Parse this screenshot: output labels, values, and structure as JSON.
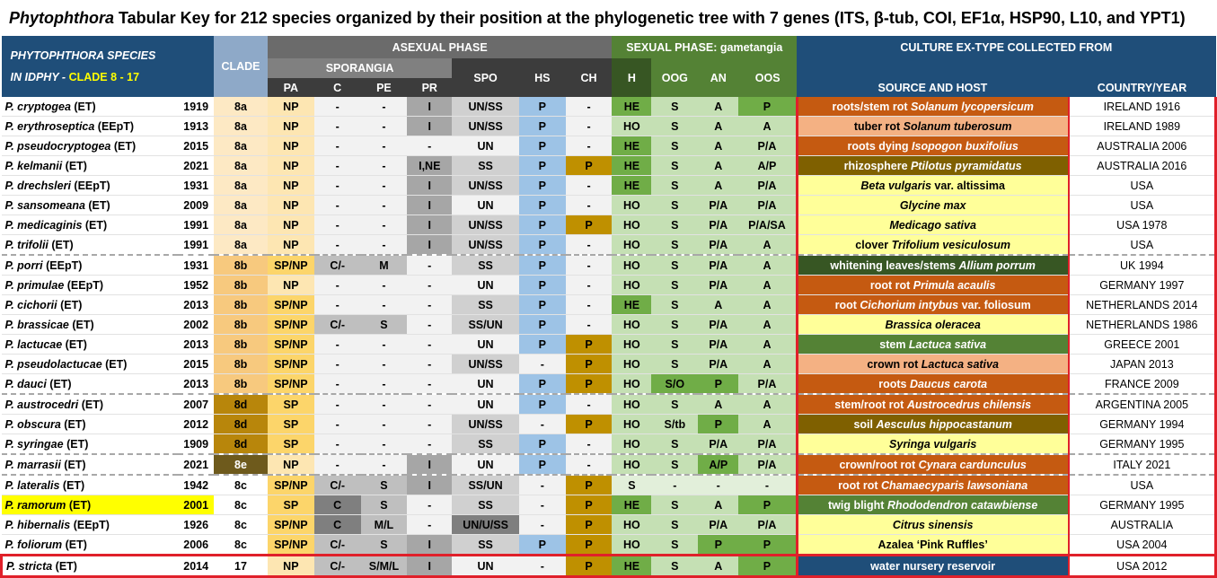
{
  "title": {
    "genus": "Phytophthora",
    "rest": " Tabular Key for 212 species organized by their position at the phylogenetic tree with 7 genes (ITS, β-tub, COI, EF1α, HSP90, L10, and YPT1)"
  },
  "header": {
    "species_title": "PHYTOPHTHORA SPECIES",
    "species_sub_prefix": "IN IDPHY - ",
    "species_sub_clade": "CLADE 8 - 17",
    "clade": "CLADE",
    "asexual_phase": "ASEXUAL PHASE",
    "sporangia": "SPORANGIA",
    "sexual_phase": "SEXUAL PHASE: gametangia",
    "culture": "CULTURE EX-TYPE COLLECTED FROM",
    "pa": "PA",
    "c": "C",
    "pe": "PE",
    "pr": "PR",
    "spo": "SPO",
    "hs": "HS",
    "ch": "CH",
    "h": "H",
    "oog": "OOG",
    "an": "AN",
    "oos": "OOS",
    "source": "SOURCE AND HOST",
    "country": "COUNTRY/YEAR"
  },
  "colors": {
    "clade_8a": "#fde9c4",
    "clade_8b": "#f7c97e",
    "clade_8d": "#b8860b",
    "clade_8e": "#6e5a1c",
    "pa_np": "#fde6b2",
    "pa_sp": "#fcd56a",
    "hs_p": "#9dc3e6",
    "ch_p": "#bf9000",
    "h_he": "#70ad47",
    "h_ho": "#c5e0b4",
    "src_orange": "#c55a11",
    "src_peach": "#f4b183",
    "src_olive": "#7f6000",
    "src_yellow": "#ffff99",
    "src_dkgreen": "#375623",
    "src_green": "#548235",
    "src_navy": "#1f4e79",
    "highlight": "#ffff00"
  },
  "rows": [
    {
      "species": "P. cryptogea",
      "tag": " (ET)",
      "year": "1919",
      "clade": "8a",
      "pa": "NP",
      "c": "-",
      "pe": "-",
      "pr": "I",
      "spo": "UN/SS",
      "hs": "P",
      "ch": "-",
      "h": "HE",
      "oog": "S",
      "an": "A",
      "oos": "P",
      "src_pre": "roots/stem rot ",
      "src_host": "Solanum lycopersicum",
      "src_post": "",
      "src_style": "orange",
      "country": "IRELAND 1916"
    },
    {
      "species": "P. erythroseptica",
      "tag": " (EEpT)",
      "year": "1913",
      "clade": "8a",
      "pa": "NP",
      "c": "-",
      "pe": "-",
      "pr": "I",
      "spo": "UN/SS",
      "hs": "P",
      "ch": "-",
      "h": "HO",
      "oog": "S",
      "an": "A",
      "oos": "A",
      "src_pre": "tuber rot ",
      "src_host": "Solanum tuberosum",
      "src_post": "",
      "src_style": "peach",
      "country": "IRELAND 1989"
    },
    {
      "species": "P. pseudocryptogea",
      "tag": " (ET)",
      "year": "2015",
      "clade": "8a",
      "pa": "NP",
      "c": "-",
      "pe": "-",
      "pr": "-",
      "spo": "UN",
      "hs": "P",
      "ch": "-",
      "h": "HE",
      "oog": "S",
      "an": "A",
      "oos": "P/A",
      "src_pre": "roots dying ",
      "src_host": "Isopogon buxifolius",
      "src_post": "",
      "src_style": "orange",
      "country": "AUSTRALIA 2006"
    },
    {
      "species": "P. kelmanii",
      "tag": " (ET)",
      "year": "2021",
      "clade": "8a",
      "pa": "NP",
      "c": "-",
      "pe": "-",
      "pr": "I,NE",
      "spo": "SS",
      "hs": "P",
      "ch": "P",
      "h": "HE",
      "oog": "S",
      "an": "A",
      "oos": "A/P",
      "src_pre": "rhizosphere ",
      "src_host": "Ptilotus pyramidatus",
      "src_post": "",
      "src_style": "olive",
      "country": "AUSTRALIA 2016"
    },
    {
      "species": "P. drechsleri",
      "tag": " (EEpT)",
      "year": "1931",
      "clade": "8a",
      "pa": "NP",
      "c": "-",
      "pe": "-",
      "pr": "I",
      "spo": "UN/SS",
      "hs": "P",
      "ch": "-",
      "h": "HE",
      "oog": "S",
      "an": "A",
      "oos": "P/A",
      "src_pre": "",
      "src_host": "Beta vulgaris",
      "src_post": " var. altissima",
      "src_style": "yellow",
      "country": "USA"
    },
    {
      "species": "P. sansomeana",
      "tag": " (ET)",
      "year": "2009",
      "clade": "8a",
      "pa": "NP",
      "c": "-",
      "pe": "-",
      "pr": "I",
      "spo": "UN",
      "hs": "P",
      "ch": "-",
      "h": "HO",
      "oog": "S",
      "an": "P/A",
      "oos": "P/A",
      "src_pre": "",
      "src_host": "Glycine max",
      "src_post": "",
      "src_style": "yellow",
      "country": "USA"
    },
    {
      "species": "P. medicaginis",
      "tag": " (ET)",
      "year": "1991",
      "clade": "8a",
      "pa": "NP",
      "c": "-",
      "pe": "-",
      "pr": "I",
      "spo": "UN/SS",
      "hs": "P",
      "ch": "P",
      "h": "HO",
      "oog": "S",
      "an": "P/A",
      "oos": "P/A/SA",
      "src_pre": "",
      "src_host": "Medicago sativa",
      "src_post": "",
      "src_style": "yellow",
      "country": "USA 1978"
    },
    {
      "species": "P. trifolii",
      "tag": " (ET)",
      "year": "1991",
      "clade": "8a",
      "pa": "NP",
      "c": "-",
      "pe": "-",
      "pr": "I",
      "spo": "UN/SS",
      "hs": "P",
      "ch": "-",
      "h": "HO",
      "oog": "S",
      "an": "P/A",
      "oos": "A",
      "src_pre": "clover ",
      "src_host": "Trifolium vesiculosum",
      "src_post": "",
      "src_style": "yellow",
      "country": "USA",
      "sep": true
    },
    {
      "species": "P. porri",
      "tag": " (EEpT)",
      "year": "1931",
      "clade": "8b",
      "pa": "SP/NP",
      "c": "C/-",
      "pe": "M",
      "pr": "-",
      "spo": "SS",
      "hs": "P",
      "ch": "-",
      "h": "HO",
      "oog": "S",
      "an": "P/A",
      "oos": "A",
      "src_pre": "whitening leaves/stems ",
      "src_host": "Allium porrum",
      "src_post": "",
      "src_style": "dkgreen",
      "country": "UK 1994"
    },
    {
      "species": "P. primulae",
      "tag": " (EEpT)",
      "year": "1952",
      "clade": "8b",
      "pa": "NP",
      "c": "-",
      "pe": "-",
      "pr": "-",
      "spo": "UN",
      "hs": "P",
      "ch": "-",
      "h": "HO",
      "oog": "S",
      "an": "P/A",
      "oos": "A",
      "src_pre": "root rot ",
      "src_host": "Primula acaulis",
      "src_post": "",
      "src_style": "orange",
      "country": "GERMANY 1997"
    },
    {
      "species": "P. cichorii",
      "tag": " (ET)",
      "year": "2013",
      "clade": "8b",
      "pa": "SP/NP",
      "c": "-",
      "pe": "-",
      "pr": "-",
      "spo": "SS",
      "hs": "P",
      "ch": "-",
      "h": "HE",
      "oog": "S",
      "an": "A",
      "oos": "A",
      "src_pre": "root ",
      "src_host": "Cichorium intybus",
      "src_post": " var. foliosum",
      "src_style": "orange",
      "country": "NETHERLANDS 2014"
    },
    {
      "species": "P. brassicae",
      "tag": " (ET)",
      "year": "2002",
      "clade": "8b",
      "pa": "SP/NP",
      "c": "C/-",
      "pe": "S",
      "pr": "-",
      "spo": "SS/UN",
      "hs": "P",
      "ch": "-",
      "h": "HO",
      "oog": "S",
      "an": "P/A",
      "oos": "A",
      "src_pre": "",
      "src_host": "Brassica oleracea",
      "src_post": "",
      "src_style": "yellow",
      "country": "NETHERLANDS 1986"
    },
    {
      "species": "P. lactucae",
      "tag": " (ET)",
      "year": "2013",
      "clade": "8b",
      "pa": "SP/NP",
      "c": "-",
      "pe": "-",
      "pr": "-",
      "spo": "UN",
      "hs": "P",
      "ch": "P",
      "h": "HO",
      "oog": "S",
      "an": "P/A",
      "oos": "A",
      "src_pre": "stem ",
      "src_host": "Lactuca sativa",
      "src_post": "",
      "src_style": "green",
      "country": "GREECE 2001"
    },
    {
      "species": "P. pseudolactucae",
      "tag": " (ET)",
      "year": "2015",
      "clade": "8b",
      "pa": "SP/NP",
      "c": "-",
      "pe": "-",
      "pr": "-",
      "spo": "UN/SS",
      "hs": "-",
      "ch": "P",
      "h": "HO",
      "oog": "S",
      "an": "P/A",
      "oos": "A",
      "src_pre": "crown rot ",
      "src_host": "Lactuca sativa",
      "src_post": "",
      "src_style": "peach",
      "country": "JAPAN 2013"
    },
    {
      "species": "P. dauci",
      "tag": " (ET)",
      "year": "2013",
      "clade": "8b",
      "pa": "SP/NP",
      "c": "-",
      "pe": "-",
      "pr": "-",
      "spo": "UN",
      "hs": "P",
      "ch": "P",
      "h": "HO",
      "oog": "S/O",
      "an": "P",
      "oos": "P/A",
      "src_pre": "roots ",
      "src_host": "Daucus carota",
      "src_post": "",
      "src_style": "orange",
      "country": "FRANCE 2009",
      "sep": true
    },
    {
      "species": "P. austrocedri",
      "tag": " (ET)",
      "year": "2007",
      "clade": "8d",
      "pa": "SP",
      "c": "-",
      "pe": "-",
      "pr": "-",
      "spo": "UN",
      "hs": "P",
      "ch": "-",
      "h": "HO",
      "oog": "S",
      "an": "A",
      "oos": "A",
      "src_pre": "stem/root rot ",
      "src_host": "Austrocedrus chilensis",
      "src_post": "",
      "src_style": "orange",
      "country": "ARGENTINA 2005"
    },
    {
      "species": "P. obscura",
      "tag": " (ET)",
      "year": "2012",
      "clade": "8d",
      "pa": "SP",
      "c": "-",
      "pe": "-",
      "pr": "-",
      "spo": "UN/SS",
      "hs": "-",
      "ch": "P",
      "h": "HO",
      "oog": "S/tb",
      "an": "P",
      "oos": "A",
      "src_pre": "soil ",
      "src_host": "Aesculus hippocastanum",
      "src_post": "",
      "src_style": "olive",
      "country": "GERMANY 1994"
    },
    {
      "species": "P. syringae",
      "tag": " (ET)",
      "year": "1909",
      "clade": "8d",
      "pa": "SP",
      "c": "-",
      "pe": "-",
      "pr": "-",
      "spo": "SS",
      "hs": "P",
      "ch": "-",
      "h": "HO",
      "oog": "S",
      "an": "P/A",
      "oos": "P/A",
      "src_pre": "",
      "src_host": "Syringa vulgaris",
      "src_post": "",
      "src_style": "yellow",
      "country": "GERMANY 1995",
      "sep": true
    },
    {
      "species": "P. marrasii",
      "tag": " (ET)",
      "year": "2021",
      "clade": "8e",
      "pa": "NP",
      "c": "-",
      "pe": "-",
      "pr": "I",
      "spo": "UN",
      "hs": "P",
      "ch": "-",
      "h": "HO",
      "oog": "S",
      "an": "A/P",
      "oos": "P/A",
      "src_pre": "crown/root rot ",
      "src_host": "Cynara cardunculus",
      "src_post": "",
      "src_style": "orange",
      "country": "ITALY 2021",
      "sep": true
    },
    {
      "species": "P. lateralis",
      "tag": " (ET)",
      "year": "1942",
      "clade": "8c",
      "pa": "SP/NP",
      "c": "C/-",
      "pe": "S",
      "pr": "I",
      "spo": "SS/UN",
      "hs": "-",
      "ch": "P",
      "h": "S",
      "oog": "-",
      "an": "-",
      "oos": "-",
      "src_pre": "root rot ",
      "src_host": "Chamaecyparis lawsoniana",
      "src_post": "",
      "src_style": "orange",
      "country": "USA"
    },
    {
      "species": "P. ramorum",
      "tag": " (ET)",
      "year": "2001",
      "clade": "8c",
      "pa": "SP",
      "c": "C",
      "pe": "S",
      "pr": "-",
      "spo": "SS",
      "hs": "-",
      "ch": "P",
      "h": "HE",
      "oog": "S",
      "an": "A",
      "oos": "P",
      "src_pre": "twig blight ",
      "src_host": "Rhododendron catawbiense",
      "src_post": "",
      "src_style": "green",
      "country": "GERMANY 1995",
      "highlight": true
    },
    {
      "species": "P. hibernalis",
      "tag": " (EEpT)",
      "year": "1926",
      "clade": "8c",
      "pa": "SP/NP",
      "c": "C",
      "pe": "M/L",
      "pr": "-",
      "spo": "UN/U/SS",
      "hs": "-",
      "ch": "P",
      "h": "HO",
      "oog": "S",
      "an": "P/A",
      "oos": "P/A",
      "src_pre": "",
      "src_host": "Citrus sinensis",
      "src_post": "",
      "src_style": "yellow",
      "country": "AUSTRALIA"
    },
    {
      "species": "P. foliorum",
      "tag": " (ET)",
      "year": "2006",
      "clade": "8c",
      "pa": "SP/NP",
      "c": "C/-",
      "pe": "S",
      "pr": "I",
      "spo": "SS",
      "hs": "P",
      "ch": "P",
      "h": "HO",
      "oog": "S",
      "an": "P",
      "oos": "P",
      "src_pre": "Azalea ‘Pink Ruffles’",
      "src_host": "",
      "src_post": "",
      "src_style": "yellow",
      "country": "USA 2004"
    },
    {
      "species": "P. stricta",
      "tag": " (ET)",
      "year": "2014",
      "clade": "17",
      "pa": "NP",
      "c": "C/-",
      "pe": "S/M/L",
      "pr": "I",
      "spo": "UN",
      "hs": "-",
      "ch": "P",
      "h": "HE",
      "oog": "S",
      "an": "A",
      "oos": "P",
      "src_pre": "water nursery reservoir",
      "src_host": "",
      "src_post": "",
      "src_style": "navy",
      "country": "USA 2012",
      "last": true
    }
  ]
}
